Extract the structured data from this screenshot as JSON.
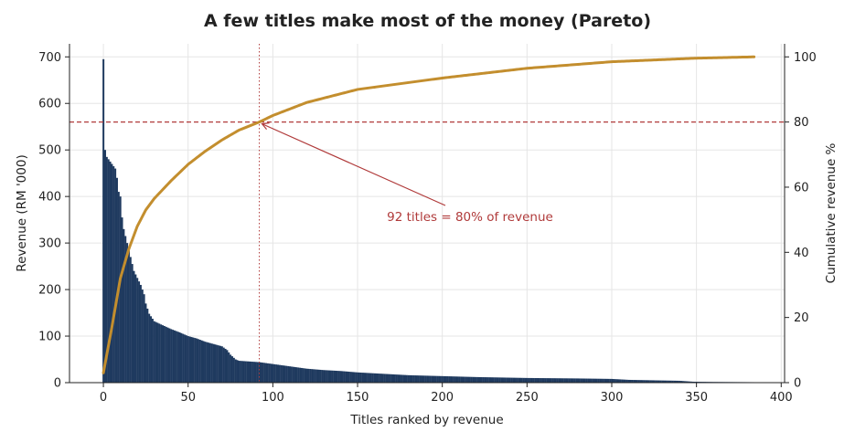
{
  "chart_data": {
    "type": "bar",
    "title": "A few titles make most of the money (Pareto)",
    "xlabel": "Titles ranked by revenue",
    "ylabel": "Revenue (RM '000)",
    "y2label": "Cumulative revenue %",
    "xlim": [
      -20,
      402
    ],
    "ylim": [
      0,
      728
    ],
    "y2lim": [
      0,
      104
    ],
    "xticks": [
      0,
      50,
      100,
      150,
      200,
      250,
      300,
      350,
      400
    ],
    "yticks": [
      0,
      100,
      200,
      300,
      400,
      500,
      600,
      700
    ],
    "y2ticks": [
      0,
      20,
      40,
      60,
      80,
      100
    ],
    "grid": true,
    "bar_color": "#1f3a5f",
    "line_color": "#c38e2e",
    "ref_color": "#b03a3a",
    "bar_profile": [
      [
        0,
        695
      ],
      [
        1,
        500
      ],
      [
        2,
        485
      ],
      [
        3,
        480
      ],
      [
        5,
        470
      ],
      [
        7,
        460
      ],
      [
        8,
        440
      ],
      [
        9,
        410
      ],
      [
        10,
        400
      ],
      [
        11,
        355
      ],
      [
        12,
        330
      ],
      [
        14,
        300
      ],
      [
        16,
        270
      ],
      [
        18,
        240
      ],
      [
        20,
        225
      ],
      [
        22,
        210
      ],
      [
        24,
        190
      ],
      [
        25,
        170
      ],
      [
        27,
        148
      ],
      [
        30,
        132
      ],
      [
        34,
        125
      ],
      [
        37,
        120
      ],
      [
        40,
        115
      ],
      [
        45,
        108
      ],
      [
        50,
        100
      ],
      [
        55,
        95
      ],
      [
        60,
        88
      ],
      [
        65,
        83
      ],
      [
        70,
        78
      ],
      [
        73,
        70
      ],
      [
        75,
        60
      ],
      [
        78,
        50
      ],
      [
        80,
        47
      ],
      [
        92,
        44
      ],
      [
        100,
        40
      ],
      [
        110,
        35
      ],
      [
        120,
        30
      ],
      [
        130,
        27
      ],
      [
        140,
        25
      ],
      [
        150,
        22
      ],
      [
        160,
        20
      ],
      [
        170,
        18
      ],
      [
        180,
        16
      ],
      [
        200,
        14
      ],
      [
        220,
        12
      ],
      [
        250,
        10
      ],
      [
        280,
        9
      ],
      [
        300,
        8
      ],
      [
        310,
        6
      ],
      [
        340,
        4
      ],
      [
        348,
        2
      ],
      [
        360,
        1.5
      ],
      [
        384,
        1
      ]
    ],
    "n_titles": 385,
    "cumulative": [
      [
        0,
        3
      ],
      [
        5,
        17
      ],
      [
        10,
        32
      ],
      [
        15,
        41
      ],
      [
        20,
        48
      ],
      [
        25,
        53
      ],
      [
        30,
        56.5
      ],
      [
        40,
        62
      ],
      [
        50,
        67
      ],
      [
        60,
        71
      ],
      [
        70,
        74.5
      ],
      [
        75,
        76
      ],
      [
        80,
        77.5
      ],
      [
        92,
        80
      ],
      [
        100,
        82
      ],
      [
        120,
        86
      ],
      [
        150,
        90
      ],
      [
        200,
        93.5
      ],
      [
        250,
        96.5
      ],
      [
        300,
        98.5
      ],
      [
        350,
        99.6
      ],
      [
        384,
        100
      ]
    ],
    "ref_x": 92,
    "ref_y": 80,
    "annotation": "92 titles = 80% of revenue"
  }
}
